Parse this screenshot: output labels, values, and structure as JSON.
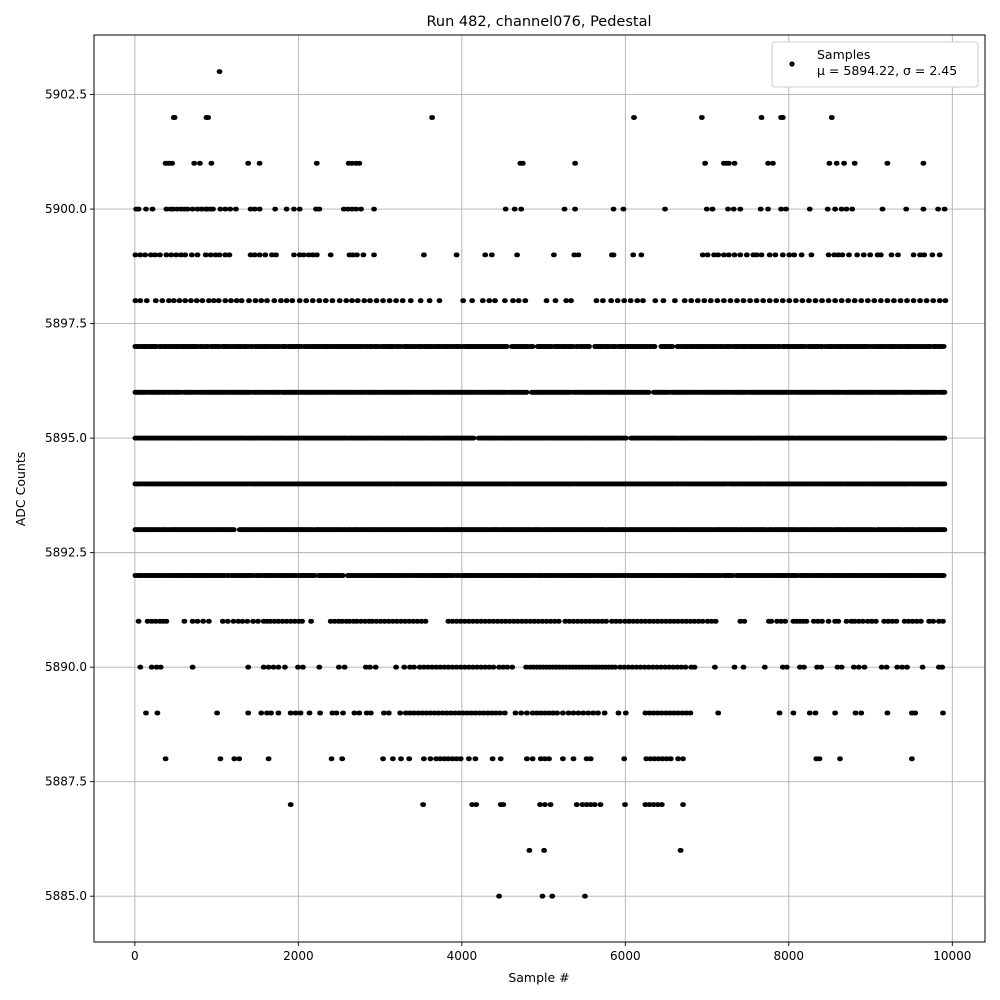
{
  "chart_data": {
    "type": "scatter",
    "title": "Run 482, channel076, Pedestal",
    "xlabel": "Sample #",
    "ylabel": "ADC Counts",
    "xlim": [
      -500,
      10400
    ],
    "ylim": [
      5884.0,
      5903.8
    ],
    "x_ticks": [
      0,
      2000,
      4000,
      6000,
      8000,
      10000
    ],
    "x_tick_labels": [
      "0",
      "2000",
      "4000",
      "6000",
      "8000",
      "10000"
    ],
    "y_ticks": [
      5885.0,
      5887.5,
      5890.0,
      5892.5,
      5895.0,
      5897.5,
      5900.0,
      5902.5
    ],
    "y_tick_labels": [
      "5885.0",
      "5887.5",
      "5890.0",
      "5892.5",
      "5895.0",
      "5897.5",
      "5900.0",
      "5902.5"
    ],
    "grid": true,
    "legend_position": "top-right",
    "marker_color": "#000000",
    "series": [
      {
        "name": "Samples",
        "legend_line2": "μ = 5894.22, σ = 2.45",
        "n_points": 10000,
        "x_range": [
          0,
          9999
        ],
        "mean": 5894.22,
        "std": 2.45,
        "levels": [
          {
            "y": 5903,
            "x": [
              1030
            ]
          },
          {
            "y": 5902,
            "x": [
              470,
              480,
              870,
              890,
              3630,
              6100,
              6930,
              7660,
              7900,
              7920,
              8520
            ]
          },
          {
            "y": 5901,
            "x": [
              370,
              400,
              420,
              450,
              720,
              790,
              930,
              1380,
              1520,
              2220,
              2610,
              2650,
              2700,
              2740,
              4710,
              4740,
              5380,
              6970,
              7200,
              7230,
              7260,
              7330,
              7740,
              7800,
              8490,
              8580,
              8670,
              8800,
              9200,
              9640
            ]
          },
          {
            "y": 5900,
            "x": [
              10,
              40,
              130,
              210,
              380,
              430,
              460,
              510,
              560,
              600,
              640,
              700,
              760,
              810,
              860,
              880,
              920,
              950,
              1040,
              1100,
              1160,
              1230,
              1410,
              1460,
              1520,
              1710,
              1850,
              1940,
              2010,
              2210,
              2250,
              2550,
              2600,
              2650,
              2700,
              2760,
              2920,
              4530,
              4640,
              4720,
              5250,
              5380,
              5850,
              5970,
              6480,
              6990,
              7060,
              7250,
              7320,
              7400,
              7650,
              7740,
              7900,
              7960,
              8250,
              8470,
              8560,
              8640,
              8700,
              8770,
              9140,
              9430,
              9640,
              9820,
              9900
            ]
          },
          {
            "y": 5899,
            "x": [
              0,
              60,
              120,
              190,
              240,
              300,
              380,
              440,
              500,
              560,
              610,
              690,
              760,
              860,
              920,
              980,
              1030,
              1100,
              1150,
              1410,
              1460,
              1520,
              1590,
              1670,
              1720,
              1940,
              2010,
              2060,
              2120,
              2170,
              2220,
              2390,
              2620,
              2660,
              2710,
              2790,
              2920,
              3530,
              3930,
              4280,
              4360,
              4670,
              5120,
              5370,
              5420,
              5830,
              5850,
              6090,
              6190,
              6940,
              7000,
              7080,
              7130,
              7200,
              7260,
              7330,
              7400,
              7480,
              7560,
              7600,
              7660,
              7760,
              7830,
              7920,
              8000,
              8060,
              8150,
              8270,
              8480,
              8550,
              8600,
              8650,
              8730,
              8830,
              8910,
              8990,
              9080,
              9120,
              9250,
              9330,
              9520,
              9600,
              9650,
              9750,
              9840
            ]
          },
          {
            "y": 5898,
            "x": [
              0,
              60,
              140,
              250,
              330,
              410,
              470,
              540,
              610,
              680,
              750,
              820,
              900,
              960,
              1020,
              1100,
              1170,
              1240,
              1300,
              1390,
              1470,
              1540,
              1610,
              1700,
              1780,
              1850,
              1920,
              2010,
              2090,
              2170,
              2250,
              2330,
              2410,
              2500,
              2580,
              2650,
              2720,
              2800,
              2870,
              2950,
              3030,
              3110,
              3190,
              3270,
              3370,
              3490,
              3600,
              3720,
              4010,
              4120,
              4250,
              4330,
              4400,
              4520,
              4620,
              4690,
              4770,
              5030,
              5140,
              5270,
              5330,
              5640,
              5720,
              5820,
              5900,
              5980,
              6060,
              6140,
              6210,
              6360,
              6460,
              6600,
              6720,
              6800,
              6880,
              6960,
              7040,
              7120,
              7200,
              7280,
              7360,
              7440,
              7520,
              7600,
              7680,
              7760,
              7840,
              7920,
              8000,
              8080,
              8160,
              8240,
              8320,
              8400,
              8480,
              8560,
              8640,
              8720,
              8800,
              8880,
              8960,
              9040,
              9120,
              9200,
              9280,
              9360,
              9440,
              9520,
              9600,
              9680,
              9760,
              9840,
              9910
            ]
          },
          {
            "y": 5897,
            "dense": true,
            "x_start": 0,
            "x_end": 9900,
            "density": 0.85,
            "gaps": [
              [
                3350,
                3360
              ],
              [
                4560,
                4590
              ],
              [
                4870,
                4920
              ],
              [
                5570,
                5620
              ],
              [
                6390,
                6430
              ],
              [
                6580,
                6630
              ]
            ]
          },
          {
            "y": 5896,
            "dense": true,
            "x_start": 0,
            "x_end": 9910,
            "density": 0.95,
            "gaps": [
              [
                4800,
                4850
              ],
              [
                6300,
                6340
              ]
            ]
          },
          {
            "y": 5895,
            "dense": true,
            "x_start": 0,
            "x_end": 9910,
            "density": 0.97,
            "gaps": [
              [
                4150,
                4200
              ],
              [
                6020,
                6060
              ]
            ]
          },
          {
            "y": 5894,
            "dense": true,
            "x_start": 0,
            "x_end": 9910,
            "density": 0.98,
            "gaps": []
          },
          {
            "y": 5893,
            "dense": true,
            "x_start": 0,
            "x_end": 9910,
            "density": 0.96,
            "gaps": [
              [
                1220,
                1270
              ]
            ]
          },
          {
            "y": 5892,
            "dense": true,
            "x_start": 0,
            "x_end": 9910,
            "density": 0.9,
            "gaps": [
              [
                2560,
                2600
              ],
              [
                7320,
                7350
              ]
            ]
          },
          {
            "y": 5891,
            "x": [
              40,
              150,
              200,
              250,
              300,
              340,
              380,
              600,
              700,
              760,
              830,
              900,
              1070,
              1130,
              1200,
              1260,
              1310,
              1370,
              1440,
              1500,
              1570,
              1610,
              1650,
              1700,
              1750,
              1800,
              1850,
              1900,
              1950,
              2000,
              2040,
              2150,
              2390,
              2440,
              2490,
              2530,
              2580,
              2620,
              2670,
              2710,
              2760,
              2810,
              2860,
              2900,
              2950,
              3000,
              3050,
              3100,
              3150,
              3200,
              3250,
              3300,
              3350,
              3400,
              3450,
              3500,
              3550,
              3830,
              3880,
              3930,
              3980,
              4030,
              4080,
              4130,
              4180,
              4230,
              4280,
              4330,
              4380,
              4430,
              4480,
              4530,
              4580,
              4630,
              4680,
              4730,
              4780,
              4830,
              4880,
              4930,
              4980,
              5030,
              5080,
              5130,
              5180,
              5260,
              5310,
              5360,
              5410,
              5460,
              5510,
              5560,
              5610,
              5660,
              5710,
              5760,
              5830,
              5880,
              5930,
              5990,
              6040,
              6090,
              6140,
              6190,
              6240,
              6290,
              6340,
              6390,
              6440,
              6490,
              6540,
              6590,
              6640,
              6690,
              6740,
              6790,
              6840,
              6890,
              6940,
              7000,
              7050,
              7100,
              7400,
              7450,
              7750,
              7780,
              7850,
              7900,
              7950,
              8050,
              8090,
              8130,
              8170,
              8210,
              8300,
              8350,
              8400,
              8480,
              8560,
              8600,
              8700,
              8760,
              8800,
              8850,
              8900,
              8960,
              9010,
              9060,
              9160,
              9210,
              9260,
              9310,
              9410,
              9460,
              9510,
              9560,
              9610,
              9710,
              9760,
              9830,
              9880
            ]
          },
          {
            "y": 5890,
            "x": [
              60,
              200,
              260,
              310,
              700,
              1380,
              1570,
              1630,
              1690,
              1750,
              1830,
              1990,
              2050,
              2250,
              2490,
              2560,
              2820,
              2870,
              2940,
              3190,
              3290,
              3360,
              3410,
              3480,
              3530,
              3580,
              3630,
              3680,
              3730,
              3780,
              3830,
              3880,
              3930,
              3980,
              4030,
              4080,
              4130,
              4180,
              4230,
              4280,
              4330,
              4380,
              4450,
              4500,
              4550,
              4610,
              4780,
              4830,
              4870,
              4910,
              4950,
              4990,
              5030,
              5070,
              5110,
              5150,
              5190,
              5230,
              5270,
              5310,
              5350,
              5390,
              5430,
              5470,
              5510,
              5550,
              5590,
              5630,
              5670,
              5710,
              5750,
              5790,
              5830,
              5870,
              5930,
              5980,
              6030,
              6080,
              6130,
              6180,
              6230,
              6280,
              6330,
              6380,
              6430,
              6480,
              6530,
              6580,
              6630,
              6680,
              6730,
              6800,
              6840,
              7090,
              7330,
              7440,
              7700,
              7920,
              7970,
              8130,
              8180,
              8340,
              8390,
              8590,
              8640,
              8790,
              8850,
              8920,
              9130,
              9190,
              9320,
              9380,
              9440,
              9630,
              9830,
              9870
            ]
          },
          {
            "y": 5889,
            "x": [
              130,
              270,
              1000,
              1380,
              1540,
              1610,
              1660,
              1750,
              1900,
              1960,
              2020,
              2130,
              2260,
              2410,
              2460,
              2540,
              2680,
              2740,
              2830,
              2880,
              3040,
              3100,
              3240,
              3310,
              3360,
              3410,
              3460,
              3510,
              3560,
              3610,
              3660,
              3710,
              3760,
              3810,
              3860,
              3910,
              3960,
              4010,
              4060,
              4110,
              4160,
              4210,
              4260,
              4310,
              4360,
              4410,
              4460,
              4520,
              4650,
              4720,
              4790,
              4860,
              4910,
              4960,
              5010,
              5060,
              5110,
              5160,
              5230,
              5300,
              5360,
              5420,
              5480,
              5540,
              5600,
              5660,
              5740,
              5910,
              6000,
              6240,
              6290,
              6340,
              6390,
              6440,
              6490,
              6540,
              6590,
              6640,
              6690,
              6740,
              6790,
              7130,
              7880,
              8050,
              8250,
              8320,
              8560,
              8810,
              8880,
              9200,
              9500,
              9540,
              9880
            ]
          },
          {
            "y": 5888,
            "x": [
              370,
              1040,
              1210,
              1270,
              1630,
              2400,
              2530,
              3030,
              3150,
              3250,
              3350,
              3530,
              3610,
              3680,
              3730,
              3780,
              3830,
              3880,
              3930,
              3980,
              4080,
              4160,
              4370,
              4470,
              4790,
              4860,
              4960,
              5010,
              5060,
              5230,
              5360,
              5520,
              5570,
              5980,
              6250,
              6300,
              6350,
              6400,
              6450,
              6500,
              6550,
              6640,
              6700,
              8330,
              8370,
              8620,
              9500
            ]
          },
          {
            "y": 5887,
            "x": [
              1900,
              3520,
              4120,
              4170,
              4470,
              4500,
              4950,
              5010,
              5080,
              5400,
              5470,
              5520,
              5570,
              5620,
              5690,
              5990,
              6240,
              6290,
              6340,
              6390,
              6440,
              6700
            ]
          },
          {
            "y": 5886,
            "x": [
              4820,
              5000,
              6670
            ]
          },
          {
            "y": 5885,
            "x": [
              4450,
              4980,
              5100,
              5500
            ]
          }
        ]
      }
    ]
  }
}
